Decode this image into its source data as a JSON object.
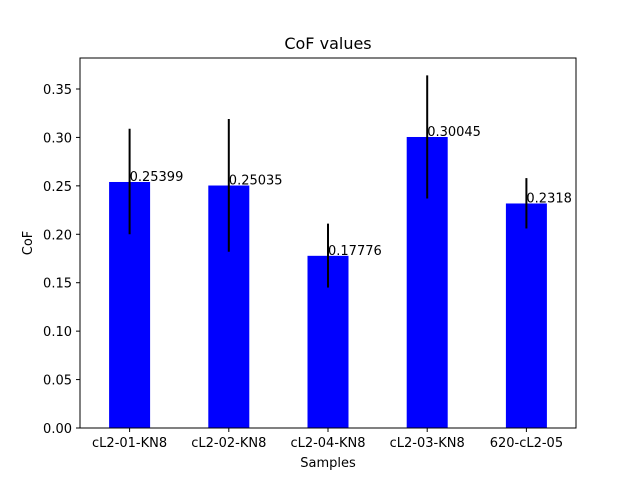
{
  "chart_data": {
    "type": "bar",
    "title": "CoF values",
    "xlabel": "Samples",
    "ylabel": "CoF",
    "categories": [
      "cL2-01-KN8",
      "cL2-02-KN8",
      "cL2-04-KN8",
      "cL2-03-KN8",
      "620-cL2-05"
    ],
    "values": [
      0.25399,
      0.25035,
      0.17776,
      0.30045,
      0.2318
    ],
    "value_labels": [
      "0.25399",
      "0.25035",
      "0.17776",
      "0.30045",
      "0.2318"
    ],
    "error_bars": [
      {
        "low": 0.2,
        "high": 0.309
      },
      {
        "low": 0.182,
        "high": 0.319
      },
      {
        "low": 0.145,
        "high": 0.211
      },
      {
        "low": 0.237,
        "high": 0.364
      },
      {
        "low": 0.206,
        "high": 0.258
      }
    ],
    "ylim": [
      0,
      0.382
    ],
    "yticks": [
      0.0,
      0.05,
      0.1,
      0.15,
      0.2,
      0.25,
      0.3,
      0.35
    ],
    "ytick_labels": [
      "0.00",
      "0.05",
      "0.10",
      "0.15",
      "0.20",
      "0.25",
      "0.30",
      "0.35"
    ],
    "grid": false,
    "bar_color": "#0000ff",
    "error_color": "#000000"
  }
}
